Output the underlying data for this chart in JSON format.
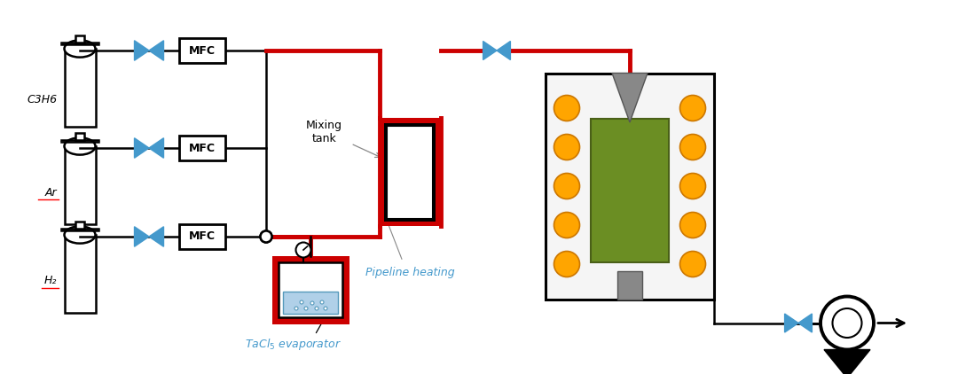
{
  "bg_color": "#ffffff",
  "black": "#000000",
  "red": "#cc0000",
  "blue": "#4499cc",
  "orange": "#FFA500",
  "orange_edge": "#cc7700",
  "green": "#6B8E23",
  "green_edge": "#4a6018",
  "gray": "#888888",
  "gray_dark": "#555555",
  "light_blue": "#b0d0e8",
  "mid_blue": "#5599bb",
  "reactor_bg": "#f5f5f5",
  "labels": {
    "C3H6": "C3H6",
    "Ar": "Ar",
    "H2": "H₂",
    "MFC": "MFC",
    "mixing_tank": "Mixing\ntank",
    "pipeline_heating": "Pipeline heating",
    "evaporator": "TaCl₅ evaporator"
  }
}
